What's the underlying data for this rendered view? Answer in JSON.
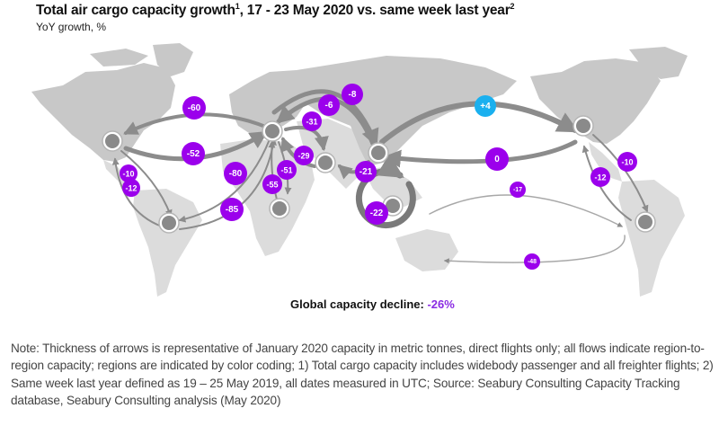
{
  "header": {
    "title": "Total air cargo capacity growth",
    "title_sup1": "1",
    "title_rest": ", 17 - 23 May 2020 vs. same week last year",
    "title_sup2": "2",
    "subtitle": "YoY growth, %"
  },
  "colors": {
    "decline_badge": "#9b00ec",
    "growth_badge": "#1ab0ef",
    "land": "#c8c8c8",
    "land_light": "#dcdcdc",
    "arrow": "#8c8c8c",
    "hub": "#8a8a8a"
  },
  "hubs": [
    {
      "id": "north-america",
      "label": "North America"
    },
    {
      "id": "europe",
      "label": "Europe"
    },
    {
      "id": "latin-america",
      "label": "Latin America"
    },
    {
      "id": "africa",
      "label": "Africa"
    },
    {
      "id": "middle-east",
      "label": "Middle East & South Asia"
    },
    {
      "id": "asia",
      "label": "Asia"
    },
    {
      "id": "southeast-asia",
      "label": "Southeast Asia"
    },
    {
      "id": "north-america-east",
      "label": "North America (repeated)"
    },
    {
      "id": "latin-america-east",
      "label": "Latin America (repeated)"
    }
  ],
  "flows": [
    {
      "from": "europe",
      "to": "north-america",
      "value": "-60"
    },
    {
      "from": "north-america",
      "to": "europe",
      "value": "-52"
    },
    {
      "from": "north-america",
      "to": "latin-america",
      "value": "-10"
    },
    {
      "from": "latin-america",
      "to": "north-america",
      "value": "-12"
    },
    {
      "from": "europe",
      "to": "latin-america",
      "value": "-85"
    },
    {
      "from": "latin-america",
      "to": "europe",
      "value": "-80"
    },
    {
      "from": "europe",
      "to": "africa",
      "value": "-55"
    },
    {
      "from": "africa",
      "to": "europe",
      "value": "-51"
    },
    {
      "from": "europe",
      "to": "middle-east",
      "value": "-31"
    },
    {
      "from": "middle-east",
      "to": "europe",
      "value": "-29"
    },
    {
      "from": "asia",
      "to": "europe",
      "value": "-6"
    },
    {
      "from": "europe",
      "to": "asia",
      "value": "-8"
    },
    {
      "from": "asia",
      "to": "middle-east",
      "value": "-21"
    },
    {
      "from": "southeast-asia",
      "to": "southeast-asia",
      "value": "-22"
    },
    {
      "from": "asia",
      "to": "north-america-east",
      "value": "+4"
    },
    {
      "from": "north-america-east",
      "to": "asia",
      "value": "0"
    },
    {
      "from": "north-america-east",
      "to": "latin-america-east",
      "value": "-10"
    },
    {
      "from": "latin-america-east",
      "to": "north-america-east",
      "value": "-12"
    },
    {
      "from": "southeast-asia",
      "to": "latin-america-east",
      "value": "-17"
    },
    {
      "from": "latin-america-east",
      "to": "southeast-asia",
      "value": "-48"
    }
  ],
  "global": {
    "label": "Global capacity decline: ",
    "value": "-26%"
  },
  "note": "Note: Thickness of arrows is representative of January 2020 capacity in metric tonnes, direct flights only; all flows indicate region-to-region capacity; regions are indicated by color coding; 1) Total cargo capacity includes widebody passenger and all freighter flights; 2) Same week last year defined as 19 – 25 May 2019, all dates measured in UTC; Source: Seabury Consulting Capacity Tracking database, Seabury Consulting analysis (May 2020)"
}
